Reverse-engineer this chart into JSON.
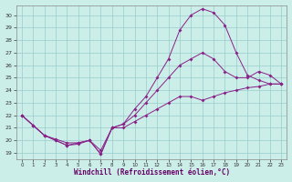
{
  "xlabel": "Windchill (Refroidissement éolien,°C)",
  "bg_color": "#cceee8",
  "line_color": "#882288",
  "grid_color": "#99cccc",
  "ylim": [
    18.5,
    30.8
  ],
  "xlim": [
    -0.5,
    23.5
  ],
  "yticks": [
    19,
    20,
    21,
    22,
    23,
    24,
    25,
    26,
    27,
    28,
    29,
    30
  ],
  "xticks": [
    0,
    1,
    2,
    3,
    4,
    5,
    6,
    7,
    8,
    9,
    10,
    11,
    12,
    13,
    14,
    15,
    16,
    17,
    18,
    19,
    20,
    21,
    22,
    23
  ],
  "line1_x": [
    0,
    1,
    2,
    3,
    4,
    5,
    6,
    7,
    8,
    9,
    10,
    11,
    12,
    13,
    14,
    15,
    16,
    17,
    18,
    19,
    20,
    21,
    22,
    23
  ],
  "line1_y": [
    22.0,
    21.2,
    20.4,
    20.0,
    19.6,
    19.8,
    20.0,
    18.9,
    21.0,
    21.0,
    21.5,
    22.0,
    22.5,
    23.0,
    23.5,
    23.5,
    23.2,
    23.5,
    23.8,
    24.0,
    24.2,
    24.3,
    24.5,
    24.5
  ],
  "line2_x": [
    0,
    1,
    2,
    3,
    4,
    5,
    6,
    7,
    8,
    9,
    10,
    11,
    12,
    13,
    14,
    15,
    16,
    17,
    18,
    19,
    20,
    21,
    22,
    23
  ],
  "line2_y": [
    22.0,
    21.2,
    20.4,
    20.0,
    19.6,
    19.7,
    20.0,
    18.9,
    21.0,
    21.3,
    22.5,
    23.5,
    25.0,
    26.5,
    28.8,
    30.0,
    30.5,
    30.2,
    29.2,
    27.0,
    25.2,
    24.8,
    24.5,
    24.5
  ],
  "line3_x": [
    0,
    1,
    2,
    3,
    4,
    5,
    6,
    7,
    8,
    9,
    10,
    11,
    12,
    13,
    14,
    15,
    16,
    17,
    18,
    19,
    20,
    21,
    22,
    23
  ],
  "line3_y": [
    22.0,
    21.2,
    20.4,
    20.1,
    19.8,
    19.8,
    20.0,
    19.2,
    21.0,
    21.3,
    22.0,
    23.0,
    24.0,
    25.0,
    26.0,
    26.5,
    27.0,
    26.5,
    25.5,
    25.0,
    25.0,
    25.5,
    25.2,
    24.5
  ]
}
